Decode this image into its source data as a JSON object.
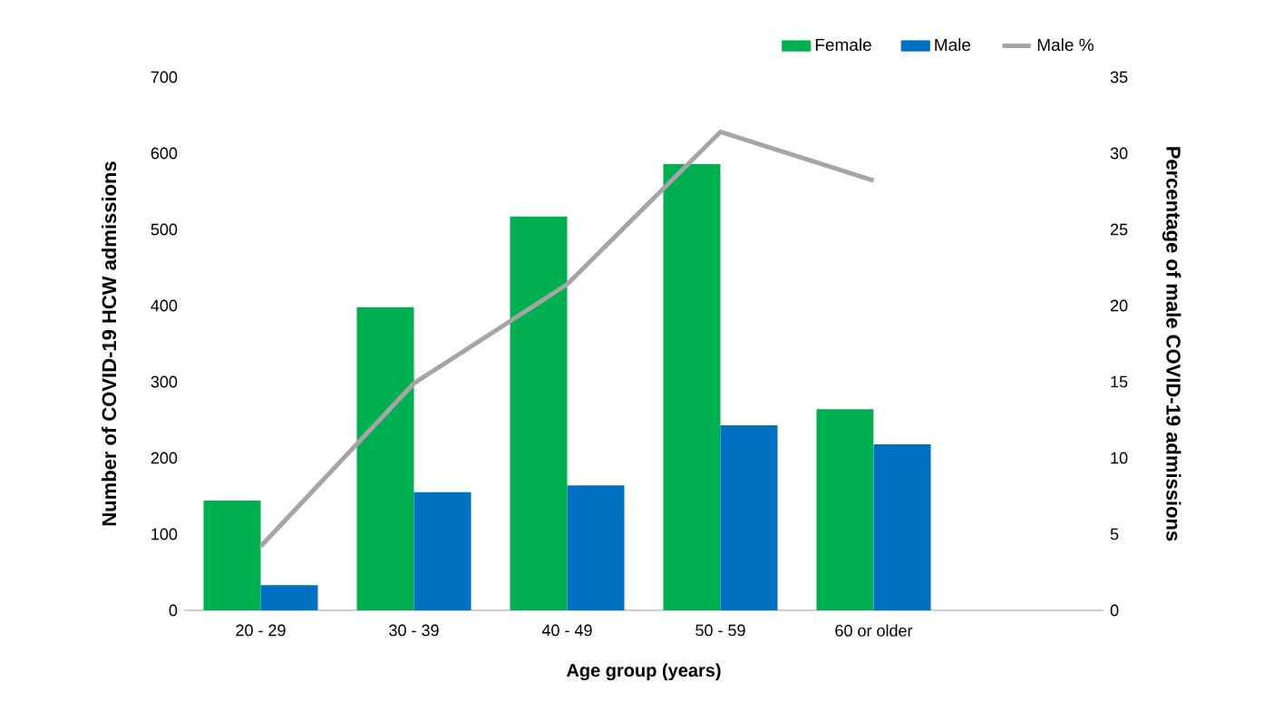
{
  "chart_data": {
    "type": "bar",
    "xlabel": "Age group (years)",
    "ylabel": "Number of COVID-19 HCW admissions",
    "y2label": "Percentage of male COVID-19 admissions",
    "categories": [
      "20 - 29",
      "30 - 39",
      "40 - 49",
      "50 - 59",
      "60 or older",
      null
    ],
    "series": [
      {
        "name": "Female",
        "color": "#00b050",
        "values": [
          144,
          398,
          517,
          586,
          264,
          null
        ]
      },
      {
        "name": "Male",
        "color": "#0070c0",
        "values": [
          33,
          155,
          164,
          243,
          218,
          null
        ]
      },
      {
        "name": "Male %",
        "type": "line",
        "axis": "y2",
        "color": "#a5a5a5",
        "marker": "none",
        "line_style": "solid",
        "values": [
          4.2,
          14.9,
          21.4,
          31.4,
          28.2,
          null
        ]
      }
    ],
    "ylim": [
      0,
      700
    ],
    "yticks": [
      0,
      100,
      200,
      300,
      400,
      500,
      600,
      700
    ],
    "y2lim": [
      0,
      35
    ],
    "y2ticks": [
      0,
      5,
      10,
      15,
      20,
      25,
      30,
      35
    ],
    "legend": "top right",
    "grid": false
  }
}
